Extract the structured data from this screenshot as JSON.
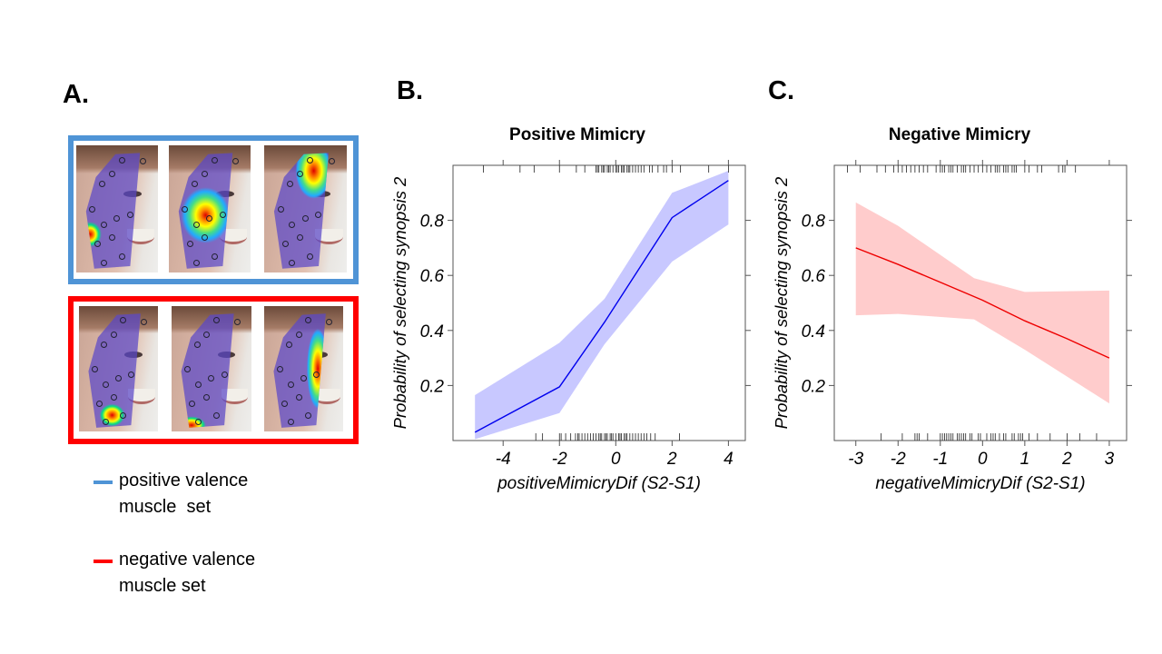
{
  "panel_a": {
    "letter": "A.",
    "positive_color": "#4f94d6",
    "negative_color": "#ff0000",
    "positive_faces": [
      "heatmap-lower-cheek",
      "heatmap-under-eye",
      "heatmap-forehead"
    ],
    "negative_faces": [
      "heatmap-chin",
      "heatmap-jaw",
      "heatmap-nose-side"
    ],
    "legend": [
      {
        "line1": "positive valence",
        "line2": "muscle  set",
        "color": "#4f94d6"
      },
      {
        "line1": "negative valence",
        "line2": "muscle set",
        "color": "#ff0000"
      }
    ]
  },
  "chart_data": [
    {
      "letter": "B.",
      "type": "line",
      "title": "Positive Mimicry",
      "xlabel": "positiveMimicryDif (S2-S1)",
      "ylabel": "Probability of selecting synopsis 2",
      "xlim": [
        -5.78,
        4.6
      ],
      "ylim": [
        0,
        1
      ],
      "xticks": [
        -4,
        -2,
        0,
        2,
        4
      ],
      "xtick_labels": [
        "-4",
        "-2",
        "0",
        "2",
        "4"
      ],
      "yticks": [
        0.2,
        0.4,
        0.6,
        0.8
      ],
      "ytick_labels": [
        "0.2",
        "0.4",
        "0.6",
        "0.8"
      ],
      "grid": false,
      "line_color": "#0000ee",
      "band_color": "#c8c8ff",
      "x": [
        -5,
        -2,
        -0.4,
        2,
        4
      ],
      "y": [
        0.03,
        0.195,
        0.43,
        0.81,
        0.945
      ],
      "ci_lower": [
        0.005,
        0.1,
        0.35,
        0.65,
        0.785
      ],
      "ci_upper": [
        0.165,
        0.355,
        0.515,
        0.9,
        0.98
      ],
      "rug_top": [
        -4.7,
        -3.4,
        -2.9,
        -2.0,
        -1.4,
        -1.1,
        -0.7,
        -0.65,
        -0.6,
        -0.5,
        -0.45,
        -0.4,
        -0.3,
        -0.25,
        -0.2,
        -0.1,
        0,
        0.05,
        0.1,
        0.2,
        0.25,
        0.3,
        0.4,
        0.45,
        0.5,
        0.6,
        0.7,
        0.8,
        0.9,
        1.0,
        1.2,
        1.3,
        1.5,
        1.7,
        1.8,
        2.0,
        2.3,
        3.3,
        4.0
      ],
      "rug_bottom": [
        -2.84,
        -2.6,
        -2.0,
        -1.94,
        -1.78,
        -1.6,
        -1.43,
        -1.35,
        -1.3,
        -1.2,
        -1.1,
        -1.0,
        -0.9,
        -0.8,
        -0.7,
        -0.6,
        -0.55,
        -0.5,
        -0.4,
        -0.35,
        -0.3,
        -0.2,
        -0.15,
        -0.1,
        0,
        0.1,
        0.15,
        0.2,
        0.3,
        0.35,
        0.4,
        0.5,
        0.6,
        0.7,
        0.8,
        0.9,
        1.0,
        1.1,
        1.24,
        1.4,
        2.26
      ]
    },
    {
      "letter": "C.",
      "type": "line",
      "title": "Negative Mimicry",
      "xlabel": "negativeMimicryDif (S2-S1)",
      "ylabel": "Probability of selecting synopsis 2",
      "xlim": [
        -3.51,
        3.41
      ],
      "ylim": [
        0,
        1
      ],
      "xticks": [
        -3,
        -2,
        -1,
        0,
        1,
        2,
        3
      ],
      "xtick_labels": [
        "-3",
        "-2",
        "-1",
        "0",
        "1",
        "2",
        "3"
      ],
      "yticks": [
        0.2,
        0.4,
        0.6,
        0.8
      ],
      "ytick_labels": [
        "0.2",
        "0.4",
        "0.6",
        "0.8"
      ],
      "grid": false,
      "line_color": "#ee0000",
      "band_color": "#ffcccc",
      "x": [
        -3,
        -2,
        -1,
        0,
        1,
        2,
        3
      ],
      "y": [
        0.7,
        0.64,
        0.575,
        0.51,
        0.435,
        0.37,
        0.3
      ],
      "band_x": [
        -3,
        -2,
        -0.2,
        1,
        3
      ],
      "ci_lower": [
        0.455,
        0.46,
        0.44,
        0.33,
        0.135
      ],
      "ci_upper": [
        0.865,
        0.78,
        0.59,
        0.54,
        0.545
      ],
      "rug_top": [
        -3.2,
        -2.9,
        -2.5,
        -2.3,
        -2.1,
        -2.0,
        -1.9,
        -1.8,
        -1.7,
        -1.6,
        -1.5,
        -1.4,
        -1.3,
        -1.1,
        -1.0,
        -0.95,
        -0.9,
        -0.8,
        -0.75,
        -0.7,
        -0.6,
        -0.5,
        -0.45,
        -0.4,
        -0.3,
        -0.2,
        -0.1,
        0,
        0.1,
        0.2,
        0.3,
        0.35,
        0.4,
        0.5,
        0.55,
        0.6,
        0.7,
        0.75,
        0.8,
        1.0,
        1.1,
        1.3,
        1.4,
        1.8,
        1.9,
        1.95,
        2.2
      ],
      "rug_bottom": [
        -2.4,
        -1.9,
        -1.6,
        -1.55,
        -1.5,
        -1.3,
        -1.0,
        -0.95,
        -0.9,
        -0.85,
        -0.8,
        -0.75,
        -0.7,
        -0.6,
        -0.55,
        -0.5,
        -0.45,
        -0.4,
        -0.3,
        -0.25,
        -0.1,
        -0.05,
        0.1,
        0.2,
        0.25,
        0.3,
        0.4,
        0.5,
        0.55,
        0.7,
        0.75,
        0.85,
        0.9,
        0.95,
        1.1,
        1.3,
        1.6,
        2.0,
        2.3,
        2.7
      ]
    }
  ]
}
